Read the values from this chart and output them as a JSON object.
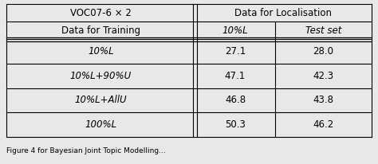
{
  "title_col1": "VOC07-6 × 2",
  "title_col2": "Data for Localisation",
  "header_col1": "Data for Training",
  "header_col2": "10%L",
  "header_col3": "Test set",
  "rows": [
    {
      "label": "10%L",
      "val1": "27.1",
      "val2": "28.0"
    },
    {
      "label": "10%L+90%U",
      "val1": "47.1",
      "val2": "42.3"
    },
    {
      "label": "10%L+AllU",
      "val1": "46.8",
      "val2": "43.8"
    },
    {
      "label": "100%L",
      "val1": "50.3",
      "val2": "46.2"
    }
  ],
  "bg_color": "#e8e8e8",
  "font_size": 8.5,
  "caption": "Figure 4 ..."
}
